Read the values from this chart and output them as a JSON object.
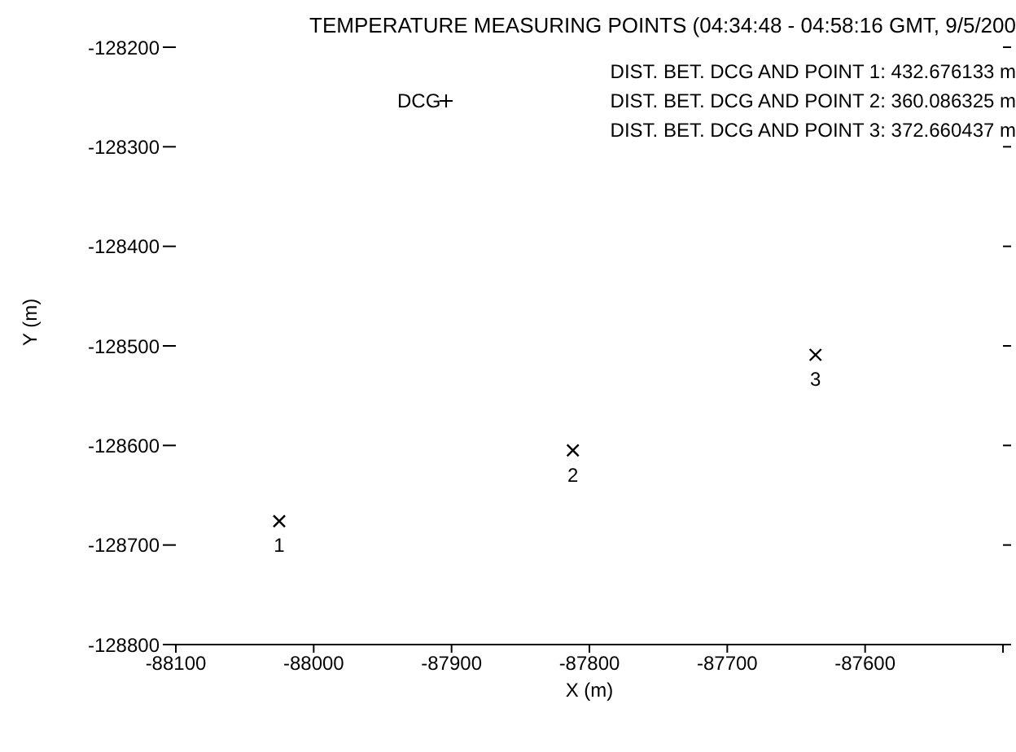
{
  "chart_data": {
    "type": "scatter",
    "title": "TEMPERATURE MEASURING POINTS (04:34:48 - 04:58:16 GMT, 9/5/200",
    "xlabel": "X (m)",
    "ylabel": "Y (m)",
    "series": [
      {
        "name": "1",
        "color": "#000000",
        "x": [
          -88025
        ],
        "values": [
          -128676
        ]
      },
      {
        "name": "2",
        "color": "#000000",
        "x": [
          -87812
        ],
        "values": [
          -128605
        ]
      },
      {
        "name": "3",
        "color": "#000000",
        "x": [
          -87636
        ],
        "values": [
          -128509
        ]
      }
    ],
    "marker": "cross",
    "xlim": [
      -88100,
      -87500
    ],
    "xticks": [
      -88100,
      -88000,
      -87900,
      -87800,
      -87700,
      -87600,
      {
        "value": -87500,
        "label": null
      }
    ],
    "ylim": [
      -128800,
      -128200
    ],
    "yticks": [
      -128800,
      -128700,
      -128600,
      -128500,
      -128400,
      -128300,
      -128200
    ],
    "annotations": [
      "DCG",
      "DIST. BET. DCG AND POINT 1: 432.676133 m",
      "DIST. BET. DCG AND POINT 2: 360.086325 m",
      "DIST. BET. DCG AND POINT 3: 372.660437 m"
    ]
  }
}
